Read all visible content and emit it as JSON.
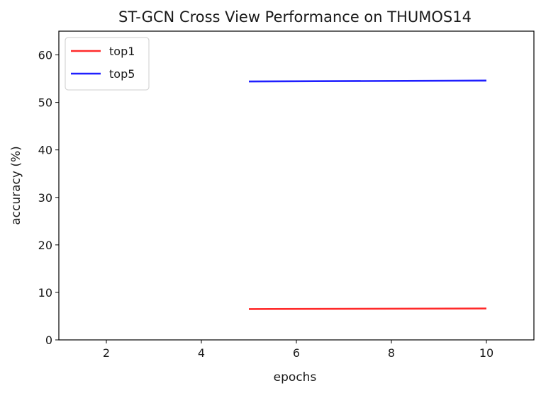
{
  "chart_data": {
    "type": "line",
    "title": "ST-GCN Cross View Performance on THUMOS14",
    "xlabel": "epochs",
    "ylabel": "accuracy (%)",
    "xlim": [
      1,
      11
    ],
    "ylim": [
      0,
      65
    ],
    "xticks": [
      2,
      4,
      6,
      8,
      10
    ],
    "yticks": [
      0,
      10,
      20,
      30,
      40,
      50,
      60
    ],
    "grid": false,
    "legend_position": "top-left",
    "series": [
      {
        "name": "top1",
        "color": "#ff2a2a",
        "x": [
          5,
          10
        ],
        "y": [
          6.5,
          6.6
        ]
      },
      {
        "name": "top5",
        "color": "#1f1fff",
        "x": [
          5,
          10
        ],
        "y": [
          54.4,
          54.6
        ]
      }
    ]
  }
}
